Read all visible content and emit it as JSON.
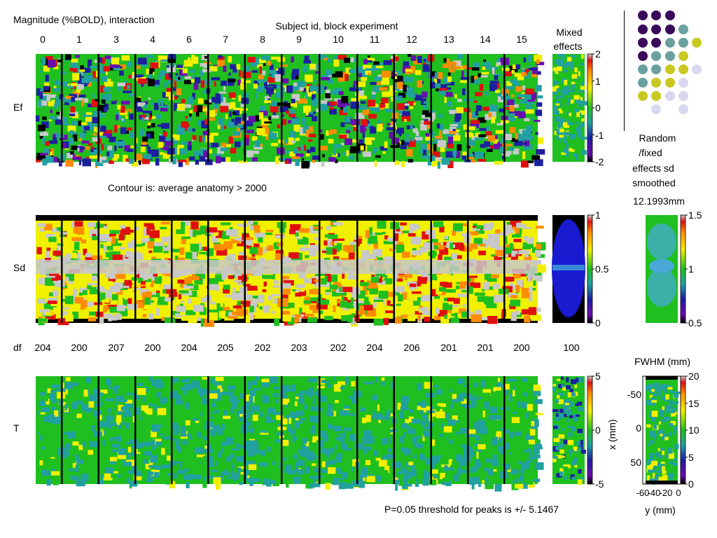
{
  "header": {
    "magnitude_title": "Magnitude (%BOLD), interaction",
    "subject_title": "Subject id, block experiment",
    "mixed_title_1": "Mixed",
    "mixed_title_2": "effects",
    "contour_note": "Contour is: average anatomy > 2000",
    "random_fixed_1": "Random",
    "random_fixed_2": "/fixed",
    "random_fixed_3": "effects sd",
    "random_fixed_4": "smoothed",
    "smoothing_value": "12.1993mm",
    "fwhm_title": "FWHM (mm)",
    "threshold_note": "P=0.05 threshold for peaks is +/- 5.1467"
  },
  "chart_data": {
    "type": "heatmap",
    "subjects": [
      "0",
      "1",
      "3",
      "4",
      "6",
      "7",
      "8",
      "9",
      "10",
      "11",
      "12",
      "13",
      "14",
      "15"
    ],
    "rows": [
      {
        "label": "Ef",
        "colorbar_ticks": [
          "2",
          "1",
          "0",
          "-1",
          "-2"
        ],
        "colorbar_range": [
          -2,
          2
        ]
      },
      {
        "label": "Sd",
        "colorbar_ticks": [
          "1",
          "0.5",
          "0"
        ],
        "colorbar_range": [
          0,
          1
        ]
      },
      {
        "label": "T",
        "colorbar_ticks": [
          "5",
          "0",
          "-5"
        ],
        "colorbar_range": [
          -5,
          5
        ]
      }
    ],
    "df_label": "df",
    "df_values": [
      "204",
      "200",
      "207",
      "200",
      "204",
      "205",
      "202",
      "203",
      "202",
      "204",
      "206",
      "201",
      "201",
      "200"
    ],
    "mixed_df": "100",
    "random_fixed_colorbar_ticks": [
      "1.5",
      "1",
      "0.5"
    ],
    "random_fixed_colorbar_range": [
      0.5,
      1.5
    ],
    "fwhm_colorbar_ticks": [
      "20",
      "15",
      "10",
      "5",
      "0"
    ],
    "fwhm_colorbar_range": [
      0,
      20
    ],
    "fwhm_xaxis_label": "x (mm)",
    "fwhm_xaxis_ticks": [
      "-50",
      "0",
      "50"
    ],
    "fwhm_yaxis_label": "y (mm)",
    "fwhm_yaxis_ticks": [
      "-60",
      "-40",
      "-20",
      "0"
    ]
  },
  "colors": {
    "background_green": "#1fbf1f",
    "teal": "#21a0a0",
    "gray": "#c8c8c8",
    "navy": "#1e1ea0",
    "purple": "#6a0dad",
    "orange": "#ff8c00",
    "red": "#e01010",
    "yellow": "#f0f000"
  }
}
